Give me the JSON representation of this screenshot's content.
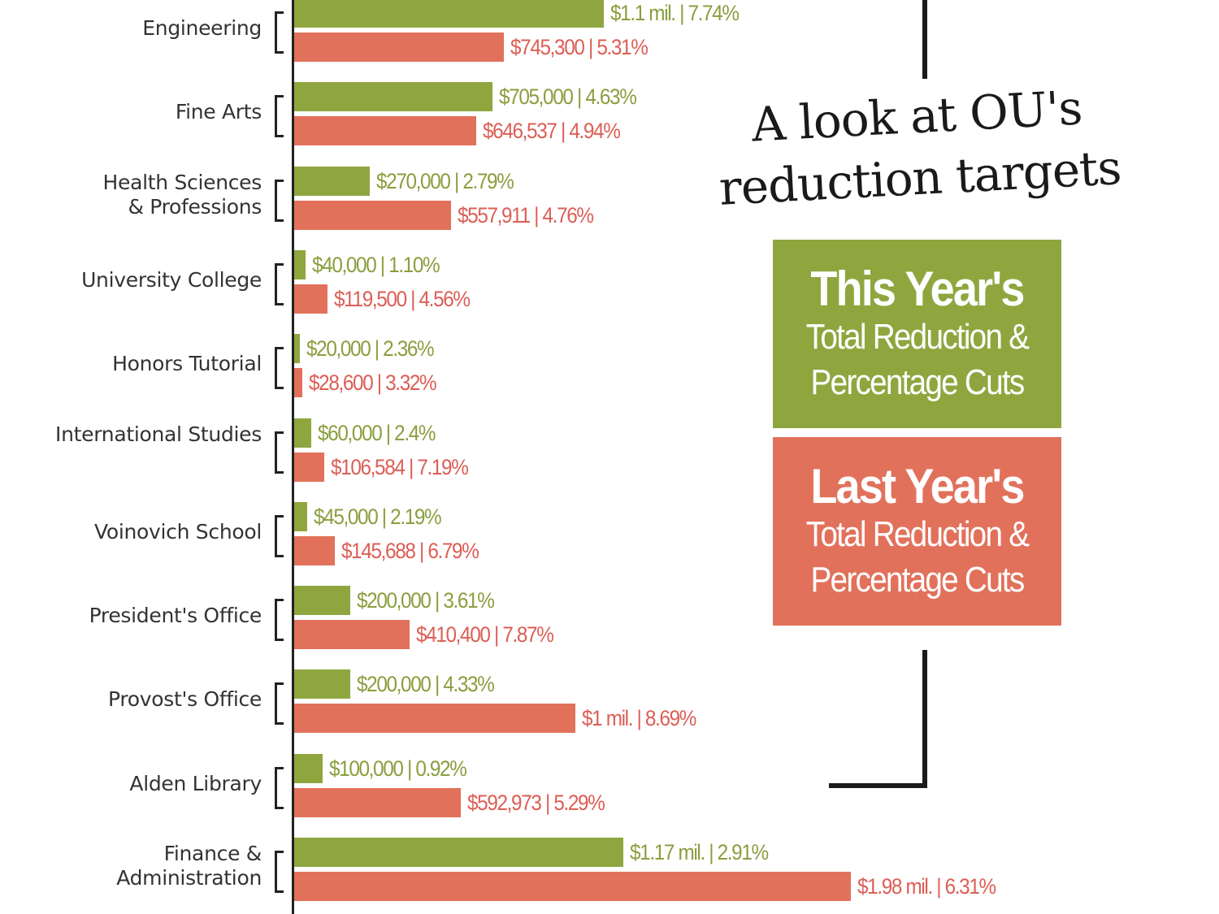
{
  "chart_data": {
    "type": "bar",
    "orientation": "horizontal",
    "title": "A look at OU's reduction targets",
    "categories": [
      "Engineering",
      "Fine Arts",
      "Health Sciences & Professions",
      "University College",
      "Honors Tutorial",
      "International Studies",
      "Voinovich School",
      "President's Office",
      "Provost's Office",
      "Alden Library",
      "Finance & Administration"
    ],
    "series": [
      {
        "name": "This Year's Total Reduction & Percentage Cuts",
        "color": "#8fa63f",
        "values": [
          1100000,
          705000,
          270000,
          40000,
          20000,
          60000,
          45000,
          200000,
          200000,
          100000,
          1170000
        ],
        "percents": [
          7.74,
          4.63,
          2.79,
          1.1,
          2.36,
          2.4,
          2.19,
          3.61,
          4.33,
          0.92,
          2.91
        ],
        "labels": [
          "$1.1 mil. | 7.74%",
          "$705,000 | 4.63%",
          "$270,000 | 2.79%",
          "$40,000 | 1.10%",
          "$20,000 | 2.36%",
          "$60,000 | 2.4%",
          "$45,000 | 2.19%",
          "$200,000 | 3.61%",
          "$200,000 | 4.33%",
          "$100,000 | 0.92%",
          "$1.17 mil. | 2.91%"
        ]
      },
      {
        "name": "Last Year's Total Reduction & Percentage Cuts",
        "color": "#e2715b",
        "values": [
          745300,
          646537,
          557911,
          119500,
          28600,
          106584,
          145688,
          410400,
          1000000,
          592973,
          1980000
        ],
        "percents": [
          5.31,
          4.94,
          4.76,
          4.56,
          3.32,
          7.19,
          6.79,
          7.87,
          8.69,
          5.29,
          6.31
        ],
        "labels": [
          "$745,300 | 5.31%",
          "$646,537 | 4.94%",
          "$557,911 | 4.76%",
          "$119,500 | 4.56%",
          "$28,600 | 3.32%",
          "$106,584 | 7.19%",
          "$145,688 | 6.79%",
          "$410,400 | 7.87%",
          "$1 mil. | 8.69%",
          "$592,973 | 5.29%",
          "$1.98 mil. | 6.31%"
        ]
      }
    ],
    "grid": false,
    "legend_placement": "right"
  },
  "legend": {
    "this_year": {
      "title": "This Year's",
      "line1": "Total Reduction &",
      "line2": "Percentage Cuts"
    },
    "last_year": {
      "title": "Last Year's",
      "line1": "Total Reduction &",
      "line2": "Percentage Cuts"
    }
  },
  "title_line1": "A look at OU's",
  "title_line2": "reduction targets",
  "label_colors": {
    "green": "#8a9e3e",
    "red": "#dc5e55"
  }
}
